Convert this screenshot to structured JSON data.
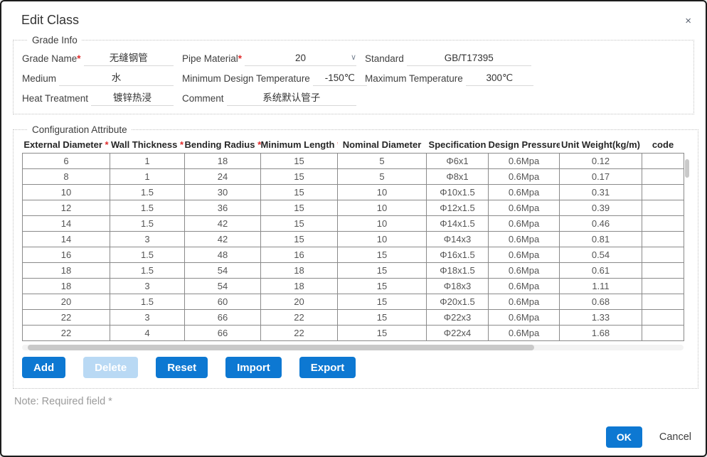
{
  "dialog": {
    "title": "Edit Class",
    "close_glyph": "×"
  },
  "grade_info": {
    "legend": "Grade Info",
    "fields": [
      {
        "label": "Grade Name",
        "required": "*",
        "value": "无缝钢管"
      },
      {
        "label": "Pipe Material",
        "required": "*",
        "value": "20",
        "chevron": "∨"
      },
      {
        "label": "Standard",
        "value": "GB/T17395"
      },
      {
        "label": "Medium",
        "value": "水"
      },
      {
        "label": "Minimum Design Temperature",
        "value": "-150℃"
      },
      {
        "label": "Maximum Temperature",
        "value": "300℃"
      },
      {
        "label": "Heat Treatment",
        "value": "镀锌热浸"
      },
      {
        "label": "Comment",
        "value": "系统默认管子"
      }
    ]
  },
  "configuration": {
    "legend": "Configuration Attribute",
    "table": {
      "columns": [
        {
          "label": "External Diameter",
          "required": true
        },
        {
          "label": "Wall Thickness",
          "required": true
        },
        {
          "label": "Bending Radius",
          "required": true
        },
        {
          "label": "Minimum Length",
          "required": true
        },
        {
          "label": "Nominal Diameter",
          "required": false
        },
        {
          "label": "Specification",
          "required": false
        },
        {
          "label": "Design Pressure",
          "required": false
        },
        {
          "label": "Unit Weight(kg/m)",
          "required": false
        },
        {
          "label": "code",
          "required": false
        }
      ],
      "rows": [
        [
          "6",
          "1",
          "18",
          "15",
          "5",
          "Φ6x1",
          "0.6Mpa",
          "0.12",
          ""
        ],
        [
          "8",
          "1",
          "24",
          "15",
          "5",
          "Φ8x1",
          "0.6Mpa",
          "0.17",
          ""
        ],
        [
          "10",
          "1.5",
          "30",
          "15",
          "10",
          "Φ10x1.5",
          "0.6Mpa",
          "0.31",
          ""
        ],
        [
          "12",
          "1.5",
          "36",
          "15",
          "10",
          "Φ12x1.5",
          "0.6Mpa",
          "0.39",
          ""
        ],
        [
          "14",
          "1.5",
          "42",
          "15",
          "10",
          "Φ14x1.5",
          "0.6Mpa",
          "0.46",
          ""
        ],
        [
          "14",
          "3",
          "42",
          "15",
          "10",
          "Φ14x3",
          "0.6Mpa",
          "0.81",
          ""
        ],
        [
          "16",
          "1.5",
          "48",
          "16",
          "15",
          "Φ16x1.5",
          "0.6Mpa",
          "0.54",
          ""
        ],
        [
          "18",
          "1.5",
          "54",
          "18",
          "15",
          "Φ18x1.5",
          "0.6Mpa",
          "0.61",
          ""
        ],
        [
          "18",
          "3",
          "54",
          "18",
          "15",
          "Φ18x3",
          "0.6Mpa",
          "1.11",
          ""
        ],
        [
          "20",
          "1.5",
          "60",
          "20",
          "15",
          "Φ20x1.5",
          "0.6Mpa",
          "0.68",
          ""
        ],
        [
          "22",
          "3",
          "66",
          "22",
          "15",
          "Φ22x3",
          "0.6Mpa",
          "1.33",
          ""
        ],
        [
          "22",
          "4",
          "66",
          "22",
          "15",
          "Φ22x4",
          "0.6Mpa",
          "1.68",
          ""
        ]
      ]
    },
    "buttons": [
      {
        "label": "Add",
        "disabled": false
      },
      {
        "label": "Delete",
        "disabled": true
      },
      {
        "label": "Reset",
        "disabled": false
      },
      {
        "label": "Import",
        "disabled": false
      },
      {
        "label": "Export",
        "disabled": false
      }
    ]
  },
  "note": "Note: Required field *",
  "footer": {
    "ok_label": "OK",
    "cancel_label": "Cancel"
  },
  "colors": {
    "accent": "#0d78d2",
    "accent_disabled": "#b9d9f4",
    "required": "#e02b2b"
  }
}
